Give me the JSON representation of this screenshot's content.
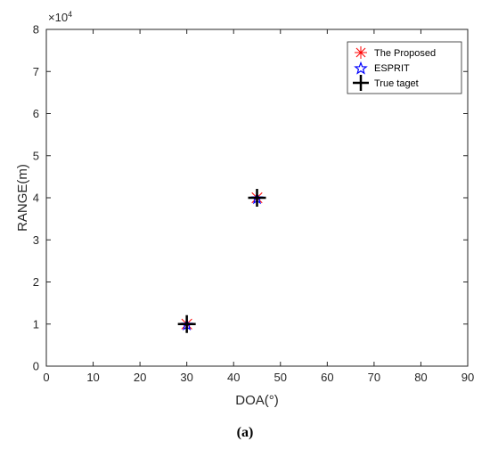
{
  "chart_data": {
    "type": "scatter",
    "xlabel": "DOA(°)",
    "ylabel": "RANGE(m)",
    "y_exponent_label": "×10",
    "y_exponent_power": "4",
    "y_multiplier": 10000,
    "xlim": [
      0,
      90
    ],
    "ylim": [
      0,
      80000
    ],
    "x_ticks": [
      0,
      10,
      20,
      30,
      40,
      50,
      60,
      70,
      80,
      90
    ],
    "y_ticks": [
      0,
      10000,
      20000,
      30000,
      40000,
      50000,
      60000,
      70000,
      80000
    ],
    "y_tick_labels": [
      "0",
      "1",
      "2",
      "3",
      "4",
      "5",
      "6",
      "7",
      "8"
    ],
    "grid": false,
    "legend_position": "top-right",
    "series": [
      {
        "name": "The Proposed",
        "marker": "asterisk",
        "color": "#ff0000",
        "points": [
          {
            "x": 30,
            "y": 10000
          },
          {
            "x": 45,
            "y": 40000
          }
        ]
      },
      {
        "name": "ESPRIT",
        "marker": "pentagram",
        "color": "#0000ff",
        "points": [
          {
            "x": 30,
            "y": 10000
          },
          {
            "x": 45,
            "y": 40000
          }
        ]
      },
      {
        "name": "True taget",
        "marker": "plus",
        "color": "#000000",
        "points": [
          {
            "x": 30,
            "y": 10000
          },
          {
            "x": 45,
            "y": 40000
          }
        ]
      }
    ]
  },
  "caption": "(a)"
}
